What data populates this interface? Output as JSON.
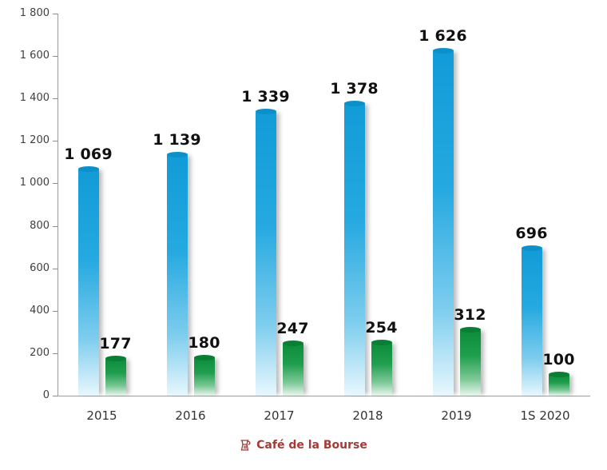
{
  "chart_data": {
    "type": "bar",
    "title": "",
    "xlabel": "",
    "ylabel": "",
    "categories": [
      "2015",
      "2016",
      "2017",
      "2018",
      "2019",
      "1S 2020"
    ],
    "series": [
      {
        "name": "blue",
        "color": "#1aa3df",
        "values": [
          1069,
          1139,
          1339,
          1378,
          1626,
          696
        ],
        "labels": [
          "1 069",
          "1 139",
          "1 339",
          "1 378",
          "1 626",
          "696"
        ]
      },
      {
        "name": "green",
        "color": "#168c3f",
        "values": [
          177,
          180,
          247,
          254,
          312,
          100
        ],
        "labels": [
          "177",
          "180",
          "247",
          "254",
          "312",
          "100"
        ]
      }
    ],
    "ylim": [
      0,
      1800
    ],
    "ytick_step": 200,
    "yticks": [
      "0",
      "200",
      "400",
      "600",
      "800",
      "1 000",
      "1 200",
      "1 400",
      "1 600",
      "1 800"
    ],
    "grid": false,
    "legend_position": "none"
  },
  "footer": {
    "brand": "Café de la Bourse"
  }
}
